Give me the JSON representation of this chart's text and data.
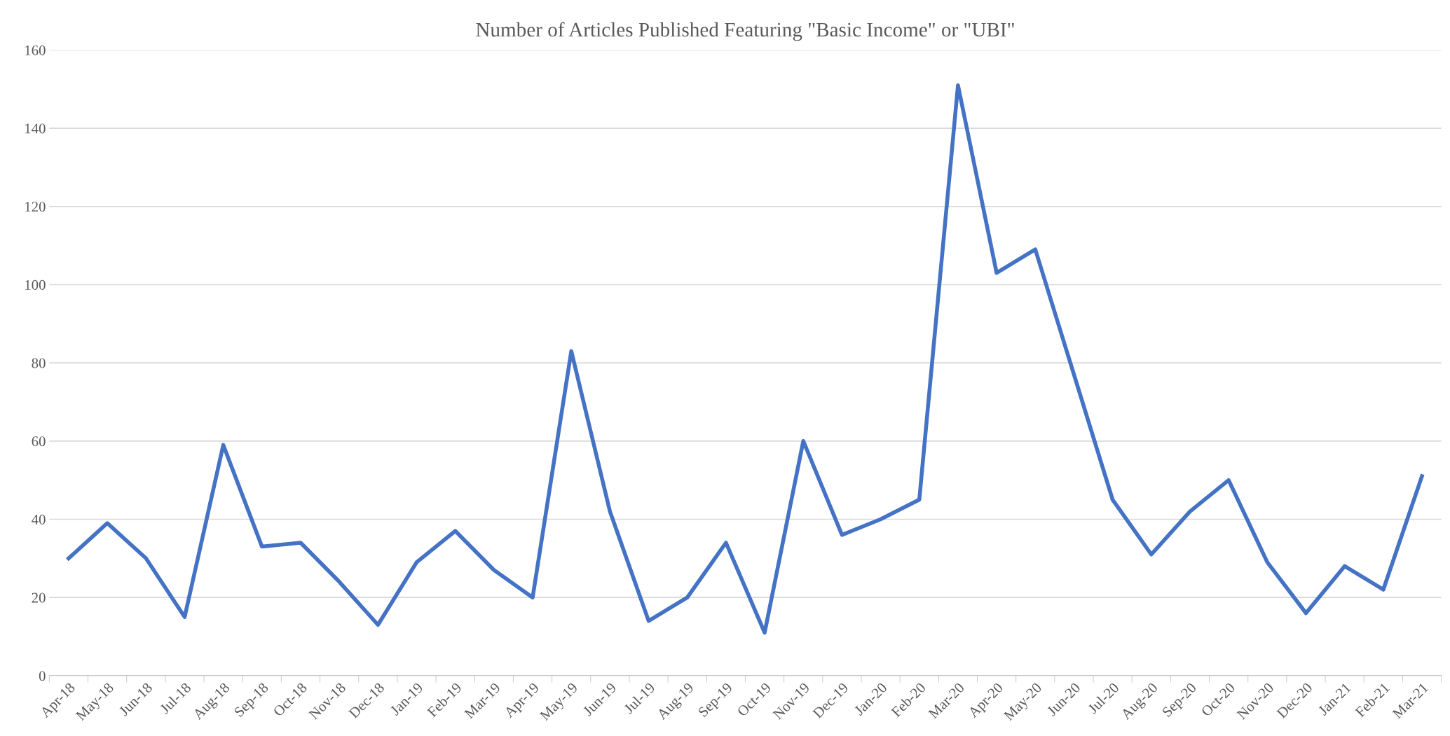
{
  "chart_data": {
    "type": "line",
    "title": "Number of Articles Published Featuring \"Basic Income\" or \"UBI\"",
    "categories": [
      "Apr-18",
      "May-18",
      "Jun-18",
      "Jul-18",
      "Aug-18",
      "Sep-18",
      "Oct-18",
      "Nov-18",
      "Dec-18",
      "Jan-19",
      "Feb-19",
      "Mar-19",
      "Apr-19",
      "May-19",
      "Jun-19",
      "Jul-19",
      "Aug-19",
      "Sep-19",
      "Oct-19",
      "Nov-19",
      "Dec-19",
      "Jan-20",
      "Feb-20",
      "Mar-20",
      "Apr-20",
      "May-20",
      "Jun-20",
      "Jul-20",
      "Aug-20",
      "Sep-20",
      "Oct-20",
      "Nov-20",
      "Dec-20",
      "Jan-21",
      "Feb-21",
      "Mar-21"
    ],
    "values": [
      30,
      39,
      30,
      15,
      59,
      33,
      34,
      24,
      13,
      29,
      37,
      27,
      20,
      83,
      42,
      14,
      20,
      34,
      11,
      60,
      36,
      40,
      45,
      151,
      103,
      109,
      77,
      45,
      31,
      42,
      50,
      29,
      16,
      28,
      22,
      51
    ],
    "color": "#4472c4",
    "ylim": [
      0,
      160
    ],
    "yticks": [
      0,
      20,
      40,
      60,
      80,
      100,
      120,
      140,
      160
    ],
    "grid": "y",
    "legend": false,
    "marker": "none",
    "line_style": "solid"
  }
}
